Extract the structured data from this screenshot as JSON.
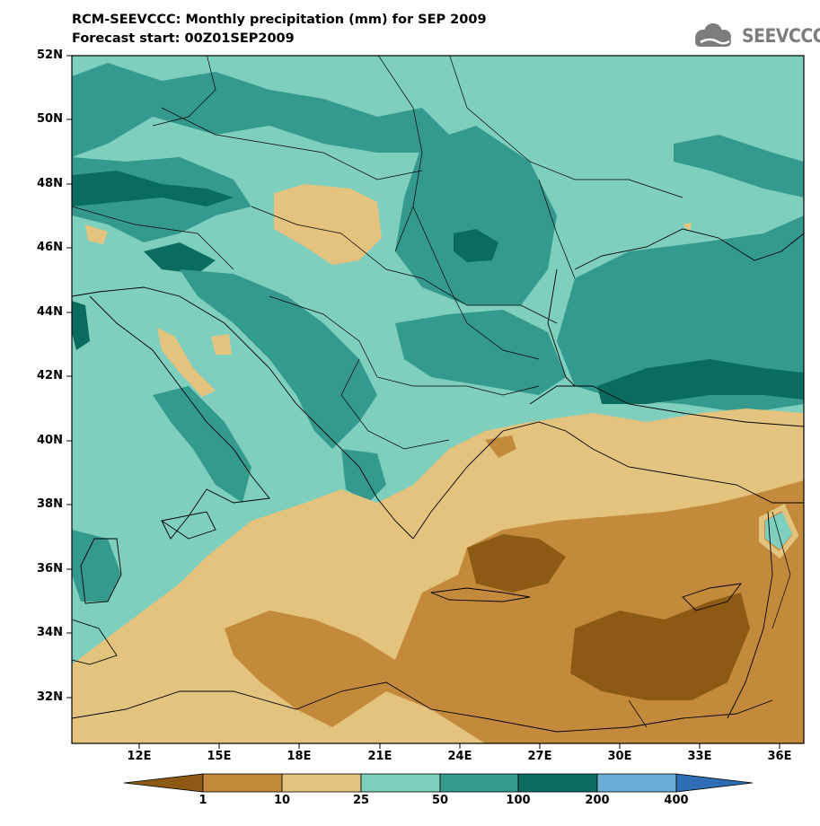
{
  "header": {
    "title_line1": "RCM-SEEVCCC: Monthly precipitation (mm) for SEP 2009",
    "title_line2": "Forecast start: 00Z01SEP2009",
    "logo_text": "SEEVCCC"
  },
  "map": {
    "lat_labels": [
      "52N",
      "50N",
      "48N",
      "46N",
      "44N",
      "42N",
      "40N",
      "38N",
      "36N",
      "34N",
      "32N"
    ],
    "lon_labels": [
      "12E",
      "15E",
      "18E",
      "21E",
      "24E",
      "27E",
      "30E",
      "33E",
      "36E"
    ],
    "lat_range": [
      30.5,
      52
    ],
    "lon_range": [
      9.5,
      37
    ]
  },
  "colorbar": {
    "levels": [
      "1",
      "10",
      "25",
      "50",
      "100",
      "200",
      "400"
    ],
    "colors": [
      "#8c5a14",
      "#c48a3c",
      "#e3c37e",
      "#7fcfbf",
      "#359a8e",
      "#0a6c5e",
      "#6baed6",
      "#2f6db5"
    ]
  },
  "colors": {
    "c0": "#8c5a14",
    "c1": "#c48a3c",
    "c2": "#e3c37e",
    "c3": "#7fcfbf",
    "c4": "#359a8e",
    "c5": "#0a6c5e"
  },
  "icons": {
    "logo": "cloud-icon"
  }
}
